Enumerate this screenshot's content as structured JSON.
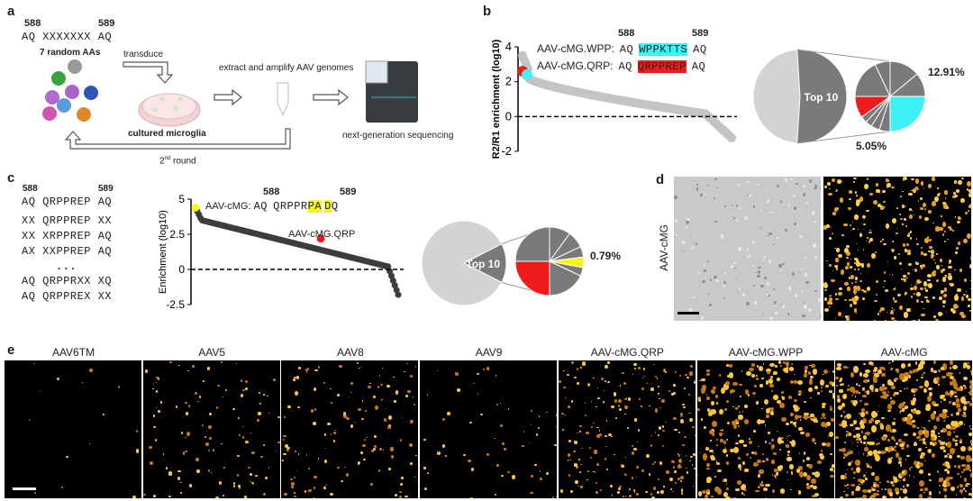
{
  "panel_a": {
    "label": "a",
    "pos_left": "588",
    "pos_right": "589",
    "sequence": "AQ XXXXXXX AQ",
    "random_note": "7 random AAs",
    "transduce": "transduce",
    "cells": "cultured microglia",
    "extract": "extract and amplify AAV genomes",
    "sequencing": "next-generation sequencing",
    "round_prefix": "2",
    "round_sup": "nd",
    "round_suffix": " round"
  },
  "panel_b": {
    "label": "b",
    "pos_left": "588",
    "pos_right": "589",
    "variants": [
      {
        "name": "AAV-cMG.WPP:",
        "left": "AQ",
        "insert": "WPPKTTS",
        "right": "AQ",
        "color": "#3ff0f5"
      },
      {
        "name": "AAV-cMG.QRP:",
        "left": "AQ",
        "insert": "QRPPREP",
        "right": "AQ",
        "color": "#ee1c1c"
      }
    ],
    "pie_top": "Top 10",
    "pct_cyan": "12.91%",
    "pct_red": "5.05%"
  },
  "panel_c": {
    "label": "c",
    "pos_left": "588",
    "pos_right": "589",
    "sequences": [
      "AQ QRPPREP AQ",
      "XX QRPPREP XX",
      "XX XRPPREP AQ",
      "AX XXPPREP AQ",
      "...",
      "AQ QRPPRXX XQ",
      "AQ QRPPREX XX"
    ],
    "top_name": "AAV-cMG:",
    "top_left": "AQ",
    "top_insert_a": "QRPPR",
    "top_insert_hl": "PA",
    "top_right_hl": "D",
    "top_right": "Q",
    "qrp_label": "AAV-cMG.QRP",
    "pie_top": "Top 10",
    "pct_yellow": "0.79%",
    "highlight": "#f5f51a"
  },
  "panel_d": {
    "label": "d",
    "row_label": "AAV-cMG"
  },
  "panel_e": {
    "label": "e",
    "columns": [
      "AAV6TM",
      "AAV5",
      "AAV8",
      "AAV9",
      "AAV-cMG.QRP",
      "AAV-cMG.WPP",
      "AAV-cMG"
    ]
  },
  "chart_data": [
    {
      "type": "scatter",
      "panel": "b",
      "title": "",
      "ylabel": "R2/R1 enrichment (log10)",
      "ylim": [
        -2,
        4
      ],
      "yticks": [
        "4",
        "2",
        "0",
        "-2"
      ],
      "reference_line": 0,
      "series_desc": "ranked variants, descending from ~3.5 to ~-1.3",
      "highlighted": [
        {
          "name": "AAV-cMG.QRP",
          "y": 2.6,
          "color": "#ee1c1c"
        },
        {
          "name": "AAV-cMG.WPP",
          "y": 2.4,
          "color": "#3ff0f5"
        }
      ]
    },
    {
      "type": "pie",
      "panel": "b",
      "slices": [
        {
          "name": "Others",
          "value": 48
        },
        {
          "name": "Top 10",
          "value": 52
        }
      ],
      "breakout": [
        {
          "name": "WPP",
          "value": 12.91,
          "color": "#3ff0f5"
        },
        {
          "name": "QRP",
          "value": 5.05,
          "color": "#ee1c1c"
        }
      ]
    },
    {
      "type": "scatter",
      "panel": "c",
      "ylabel": "Enrichment (log10)",
      "ylim": [
        -2.5,
        5
      ],
      "yticks": [
        "5",
        "2.5",
        "0",
        "-2.5"
      ],
      "reference_line": 0,
      "highlighted": [
        {
          "name": "AAV-cMG",
          "y": 4.4,
          "color": "#f5f51a"
        },
        {
          "name": "AAV-cMG.QRP",
          "y": 2.2,
          "color": "#ee1c1c"
        }
      ]
    },
    {
      "type": "pie",
      "panel": "c",
      "slices": [
        {
          "name": "Others",
          "value": 85
        },
        {
          "name": "Top 10",
          "value": 15
        }
      ],
      "breakout": [
        {
          "name": "AAV-cMG",
          "value": 0.79,
          "color": "#f5f51a"
        },
        {
          "name": "QRP",
          "value": 22,
          "color": "#ee1c1c"
        }
      ]
    }
  ]
}
